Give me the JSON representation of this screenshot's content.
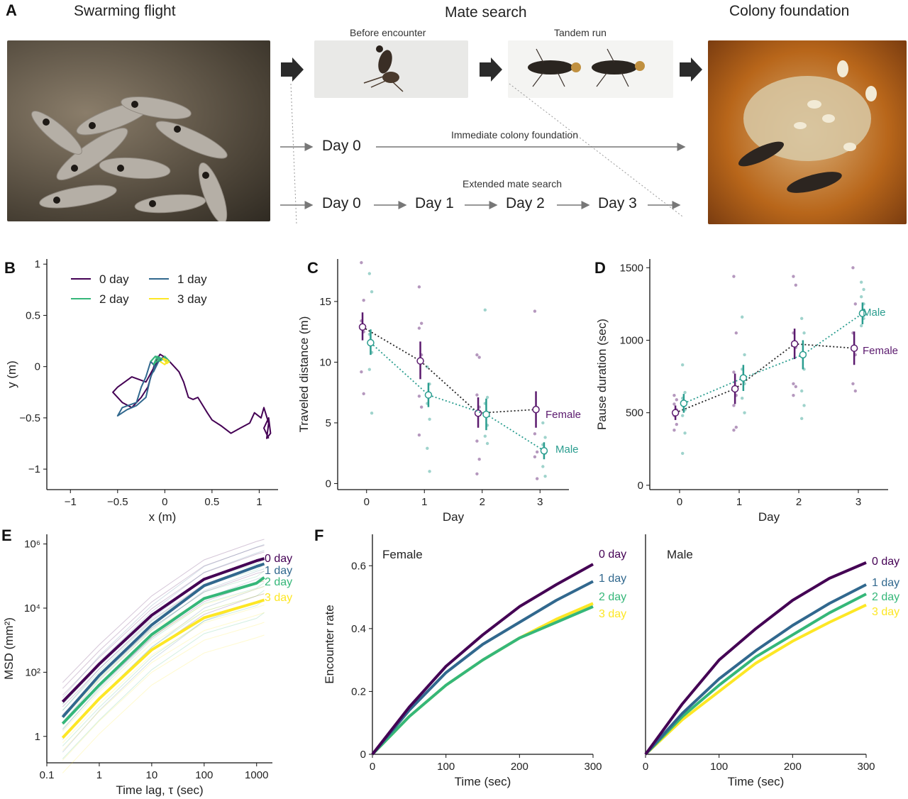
{
  "panel_a": {
    "letter": "A",
    "headers": {
      "swarming": "Swarming flight",
      "mate_search": "Mate search",
      "colony": "Colony foundation"
    },
    "sub_labels": {
      "before": "Before encounter",
      "tandem": "Tandem run"
    },
    "flow_top": {
      "day": "Day 0",
      "label": "Immediate colony foundation"
    },
    "flow_bottom": {
      "days": [
        "Day 0",
        "Day 1",
        "Day 2",
        "Day 3"
      ],
      "label": "Extended mate search"
    }
  },
  "colors": {
    "d0": "#440154",
    "d1": "#31688e",
    "d2": "#35b779",
    "d3": "#fde725",
    "female": "#5b1a6e",
    "male": "#2a9d8f"
  },
  "chart_data": [
    {
      "panel": "B",
      "type": "line",
      "xlabel": "x (m)",
      "ylabel": "y (m)",
      "xlim": [
        -1.25,
        1.2
      ],
      "ylim": [
        -1.2,
        1.05
      ],
      "xticks": [
        -1,
        -0.5,
        0,
        0.5,
        1
      ],
      "yticks": [
        -1,
        -0.5,
        0,
        0.5,
        1
      ],
      "legend": [
        {
          "label": "0 day",
          "color": "#440154"
        },
        {
          "label": "1 day",
          "color": "#31688e"
        },
        {
          "label": "2 day",
          "color": "#35b779"
        },
        {
          "label": "3 day",
          "color": "#fde725"
        }
      ],
      "series": [
        {
          "name": "0 day",
          "color": "#440154",
          "x": [
            0,
            -0.08,
            -0.2,
            -0.35,
            -0.5,
            -0.55,
            -0.45,
            -0.35,
            -0.25,
            -0.18,
            -0.1,
            -0.05,
            0.02,
            0.08,
            0.15,
            0.2,
            0.25,
            0.3,
            0.35,
            0.45,
            0.5,
            0.6,
            0.7,
            0.8,
            0.9,
            0.95,
            1.02,
            1.05,
            1.1,
            1.08,
            1.12,
            1.1,
            1.05,
            1.1
          ],
          "y": [
            0.1,
            0.05,
            -0.15,
            -0.1,
            -0.2,
            -0.25,
            -0.35,
            -0.4,
            -0.3,
            -0.2,
            0.05,
            0.12,
            0.08,
            0.02,
            -0.05,
            -0.15,
            -0.3,
            -0.32,
            -0.3,
            -0.45,
            -0.52,
            -0.58,
            -0.65,
            -0.6,
            -0.55,
            -0.45,
            -0.5,
            -0.4,
            -0.55,
            -0.7,
            -0.65,
            -0.5,
            -0.6,
            -0.7
          ]
        },
        {
          "name": "1 day",
          "color": "#31688e",
          "x": [
            -0.15,
            -0.2,
            -0.25,
            -0.3,
            -0.45,
            -0.5,
            -0.4,
            -0.3,
            -0.2,
            -0.15,
            -0.1,
            -0.15,
            -0.1,
            -0.05,
            -0.12,
            -0.1
          ],
          "y": [
            0.05,
            -0.1,
            -0.2,
            -0.35,
            -0.4,
            -0.48,
            -0.42,
            -0.38,
            -0.3,
            -0.1,
            0.0,
            0.05,
            0.1,
            0.08,
            -0.05,
            0.05
          ]
        },
        {
          "name": "2 day",
          "color": "#35b779",
          "x": [
            -0.15,
            -0.1,
            -0.05,
            0.0,
            0.05,
            -0.05,
            -0.12,
            -0.08,
            0.02
          ],
          "y": [
            0.05,
            0.1,
            0.05,
            0.1,
            0.05,
            0.08,
            0.02,
            0.1,
            0.05
          ]
        },
        {
          "name": "3 day",
          "color": "#fde725",
          "x": [
            -0.05,
            0.0,
            0.03,
            -0.02,
            0.02,
            0.05
          ],
          "y": [
            0.05,
            0.02,
            0.06,
            0.08,
            0.03,
            0.05
          ]
        }
      ]
    },
    {
      "panel": "C",
      "type": "scatter",
      "xlabel": "Day",
      "ylabel": "Traveled distance (m)",
      "xlim": [
        -0.5,
        3.5
      ],
      "ylim": [
        -0.5,
        18.5
      ],
      "xticks": [
        0,
        1,
        2,
        3
      ],
      "yticks": [
        0,
        5,
        10,
        15
      ],
      "series": [
        {
          "name": "Female",
          "color": "#5b1a6e",
          "x": [
            0,
            1,
            2,
            3
          ],
          "mean": [
            12.9,
            10.1,
            5.8,
            6.1
          ],
          "lo": [
            11.8,
            8.6,
            4.6,
            4.6
          ],
          "hi": [
            14.1,
            11.7,
            7.1,
            7.6
          ],
          "points": [
            [
              18.2,
              15.1,
              13.4,
              12.5,
              9.2,
              7.4
            ],
            [
              16.2,
              13.2,
              12.8,
              10.6,
              7.2,
              6.3,
              4.0
            ],
            [
              10.6,
              10.4,
              7.3,
              6.3,
              3.5,
              2.0,
              0.8
            ],
            [
              14.2,
              6.0,
              4.1,
              2.6,
              2.2,
              0.4
            ]
          ]
        },
        {
          "name": "Male",
          "color": "#2a9d8f",
          "x": [
            0,
            1,
            2,
            3
          ],
          "mean": [
            11.6,
            7.3,
            5.7,
            2.7
          ],
          "lo": [
            10.6,
            6.3,
            4.4,
            2.0
          ],
          "hi": [
            12.7,
            8.3,
            7.0,
            3.4
          ],
          "points": [
            [
              17.3,
              15.8,
              12.3,
              10.8,
              9.4,
              5.8
            ],
            [
              9.6,
              8.2,
              6.6,
              5.3,
              2.9,
              1.0
            ],
            [
              14.3,
              7.1,
              6.6,
              4.8,
              3.9,
              3.3
            ],
            [
              5.0,
              3.8,
              3.2,
              2.5,
              1.4,
              0.6
            ]
          ]
        }
      ],
      "annotations": [
        "Female",
        "Male"
      ]
    },
    {
      "panel": "D",
      "type": "scatter",
      "xlabel": "Day",
      "ylabel": "Pause duration (sec)",
      "xlim": [
        -0.5,
        3.5
      ],
      "ylim": [
        -30,
        1560
      ],
      "xticks": [
        0,
        1,
        2,
        3
      ],
      "yticks": [
        0,
        500,
        1000,
        1500
      ],
      "series": [
        {
          "name": "Female",
          "color": "#5b1a6e",
          "x": [
            0,
            1,
            2,
            3
          ],
          "mean": [
            500,
            665,
            975,
            945
          ],
          "lo": [
            450,
            560,
            870,
            830
          ],
          "hi": [
            550,
            770,
            1080,
            1060
          ],
          "points": [
            [
              620,
              590,
              560,
              520,
              480,
              420,
              380
            ],
            [
              1440,
              1050,
              780,
              620,
              550,
              400,
              380
            ],
            [
              1440,
              1380,
              1050,
              950,
              700,
              680,
              620
            ],
            [
              1500,
              1250,
              1050,
              900,
              700,
              650
            ]
          ]
        },
        {
          "name": "Male",
          "color": "#2a9d8f",
          "x": [
            0,
            1,
            2,
            3
          ],
          "mean": [
            565,
            740,
            900,
            1185
          ],
          "lo": [
            500,
            650,
            800,
            1110
          ],
          "hi": [
            630,
            830,
            1000,
            1260
          ],
          "points": [
            [
              830,
              640,
              600,
              520,
              480,
              360,
              220
            ],
            [
              1160,
              900,
              800,
              700,
              600,
              500
            ],
            [
              1150,
              1050,
              900,
              800,
              650,
              550,
              460
            ],
            [
              1400,
              1350,
              1300,
              1250,
              1200,
              1150,
              1100
            ]
          ]
        }
      ],
      "annotations": [
        "Male",
        "Female"
      ]
    },
    {
      "panel": "E",
      "type": "line",
      "xscale": "log",
      "yscale": "log",
      "xlabel": "Time lag, τ (sec)",
      "ylabel": "MSD (mm²)",
      "xlim": [
        0.1,
        2000
      ],
      "ylim": [
        0.15,
        2000000
      ],
      "xticks": [
        0.1,
        1,
        10,
        100,
        1000
      ],
      "xticklabels": [
        "0.1",
        "1",
        "10",
        "100",
        "1000"
      ],
      "yticks": [
        1,
        100,
        10000,
        1000000
      ],
      "yticklabels": [
        "1",
        "10²",
        "10⁴",
        "10⁶"
      ],
      "series": [
        {
          "name": "0 day",
          "color": "#440154",
          "x": [
            0.2,
            1,
            10,
            100,
            1000,
            1400
          ],
          "y": [
            12,
            180,
            6000,
            80000,
            300000,
            350000
          ]
        },
        {
          "name": "1 day",
          "color": "#31688e",
          "x": [
            0.2,
            1,
            10,
            100,
            1000,
            1400
          ],
          "y": [
            4,
            80,
            3000,
            50000,
            200000,
            240000
          ]
        },
        {
          "name": "2 day",
          "color": "#35b779",
          "x": [
            0.2,
            1,
            10,
            100,
            1000,
            1400
          ],
          "y": [
            2.5,
            40,
            1500,
            20000,
            60000,
            90000
          ]
        },
        {
          "name": "3 day",
          "color": "#fde725",
          "x": [
            0.2,
            1,
            10,
            100,
            1000,
            1400
          ],
          "y": [
            0.9,
            15,
            500,
            5000,
            15000,
            18000
          ]
        }
      ],
      "end_labels": [
        "0 day",
        "1 day",
        "2 day",
        "3 day"
      ]
    },
    {
      "panel": "F",
      "type": "line",
      "subtitle": "Female",
      "xlabel": "Time (sec)",
      "ylabel": "Encounter rate",
      "xlim": [
        0,
        300
      ],
      "ylim": [
        0,
        0.7
      ],
      "xticks": [
        0,
        100,
        200,
        300
      ],
      "yticks": [
        0,
        0.2,
        0.4,
        0.6
      ],
      "series": [
        {
          "name": "0 day",
          "color": "#440154",
          "x": [
            0,
            50,
            100,
            150,
            200,
            250,
            300
          ],
          "y": [
            0,
            0.15,
            0.28,
            0.38,
            0.47,
            0.54,
            0.605
          ]
        },
        {
          "name": "1 day",
          "color": "#31688e",
          "x": [
            0,
            50,
            100,
            150,
            200,
            250,
            300
          ],
          "y": [
            0,
            0.14,
            0.26,
            0.35,
            0.42,
            0.49,
            0.55
          ]
        },
        {
          "name": "2 day",
          "color": "#35b779",
          "x": [
            0,
            50,
            100,
            150,
            200,
            250,
            300
          ],
          "y": [
            0,
            0.12,
            0.22,
            0.3,
            0.37,
            0.42,
            0.47
          ]
        },
        {
          "name": "3 day",
          "color": "#fde725",
          "x": [
            0,
            50,
            100,
            150,
            200,
            250,
            300
          ],
          "y": [
            0,
            0.12,
            0.22,
            0.3,
            0.37,
            0.43,
            0.48
          ]
        }
      ],
      "end_labels": [
        "0 day",
        "1 day",
        "2 day",
        "3 day"
      ]
    },
    {
      "panel": "F",
      "type": "line",
      "subtitle": "Male",
      "xlabel": "Time (sec)",
      "xlim": [
        0,
        300
      ],
      "ylim": [
        0,
        0.7
      ],
      "xticks": [
        0,
        100,
        200,
        300
      ],
      "series": [
        {
          "name": "0 day",
          "color": "#440154",
          "x": [
            0,
            50,
            100,
            150,
            200,
            250,
            300
          ],
          "y": [
            0,
            0.16,
            0.3,
            0.4,
            0.49,
            0.56,
            0.61
          ]
        },
        {
          "name": "1 day",
          "color": "#31688e",
          "x": [
            0,
            50,
            100,
            150,
            200,
            250,
            300
          ],
          "y": [
            0,
            0.13,
            0.24,
            0.33,
            0.41,
            0.48,
            0.54
          ]
        },
        {
          "name": "2 day",
          "color": "#35b779",
          "x": [
            0,
            50,
            100,
            150,
            200,
            250,
            300
          ],
          "y": [
            0,
            0.12,
            0.22,
            0.31,
            0.38,
            0.45,
            0.51
          ]
        },
        {
          "name": "3 day",
          "color": "#fde725",
          "x": [
            0,
            50,
            100,
            150,
            200,
            250,
            300
          ],
          "y": [
            0,
            0.11,
            0.2,
            0.29,
            0.36,
            0.42,
            0.475
          ]
        }
      ],
      "end_labels": [
        "0 day",
        "1 day",
        "2 day",
        "3 day"
      ]
    }
  ],
  "panel_letters": [
    "B",
    "C",
    "D",
    "E",
    "F"
  ]
}
